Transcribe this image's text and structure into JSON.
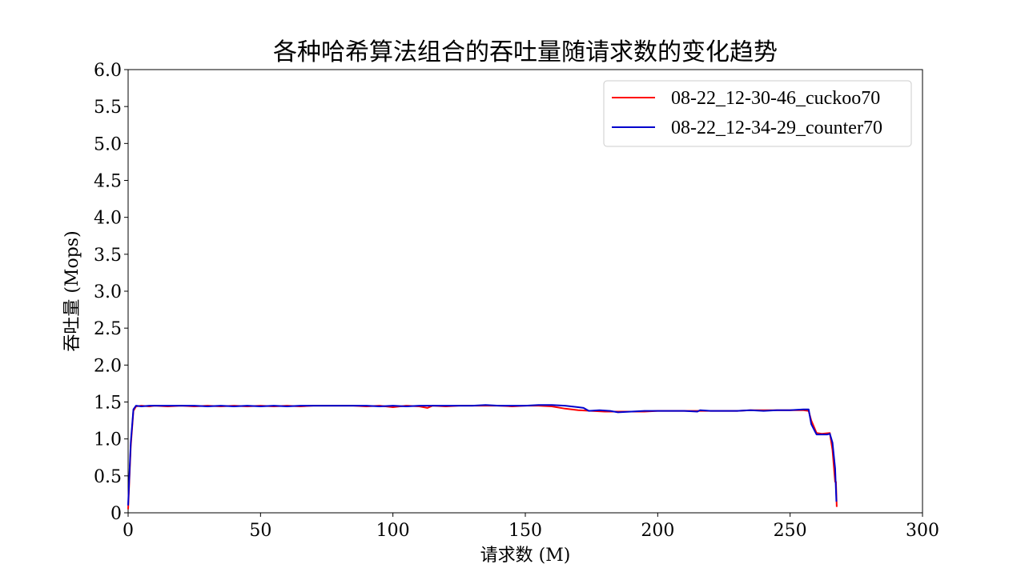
{
  "chart_data": {
    "type": "line",
    "title": "各种哈希算法组合的吞吐量随请求数的变化趋势",
    "xlabel": "请求数 (M)",
    "ylabel": "吞吐量 (Mops)",
    "xlim": [
      0,
      300
    ],
    "ylim": [
      0,
      6
    ],
    "xticks": [
      0,
      50,
      100,
      150,
      200,
      250,
      300
    ],
    "xtick_labels": [
      "0",
      "50",
      "100",
      "150",
      "200",
      "250",
      "300"
    ],
    "yticks": [
      0,
      0.5,
      1.0,
      1.5,
      2.0,
      2.5,
      3.0,
      3.5,
      4.0,
      4.5,
      5.0,
      5.5,
      6.0
    ],
    "ytick_labels": [
      "0",
      "0.5",
      "1.0",
      "1.5",
      "2.0",
      "2.5",
      "3.0",
      "3.5",
      "4.0",
      "4.5",
      "5.0",
      "5.5",
      "6.0"
    ],
    "grid": false,
    "legend_position": "top-right",
    "series": [
      {
        "name": "08-22_12-30-46_cuckoo70",
        "color": "#ff0000",
        "x": [
          0,
          1,
          2,
          3,
          5,
          8,
          10,
          15,
          20,
          25,
          30,
          35,
          40,
          45,
          50,
          55,
          60,
          65,
          70,
          75,
          80,
          85,
          90,
          95,
          100,
          105,
          110,
          113,
          115,
          120,
          125,
          130,
          135,
          140,
          145,
          150,
          155,
          160,
          165,
          170,
          175,
          180,
          185,
          190,
          195,
          200,
          205,
          210,
          215,
          220,
          225,
          230,
          235,
          240,
          245,
          250,
          255,
          257,
          258,
          260,
          262,
          265,
          266,
          267,
          267.3,
          267.6
        ],
        "y": [
          0.05,
          0.9,
          1.38,
          1.44,
          1.45,
          1.44,
          1.45,
          1.44,
          1.45,
          1.44,
          1.45,
          1.44,
          1.45,
          1.44,
          1.45,
          1.44,
          1.45,
          1.44,
          1.45,
          1.45,
          1.45,
          1.45,
          1.44,
          1.45,
          1.43,
          1.45,
          1.44,
          1.42,
          1.45,
          1.44,
          1.45,
          1.45,
          1.45,
          1.45,
          1.44,
          1.45,
          1.45,
          1.44,
          1.41,
          1.39,
          1.38,
          1.37,
          1.37,
          1.37,
          1.37,
          1.38,
          1.38,
          1.38,
          1.38,
          1.38,
          1.38,
          1.38,
          1.39,
          1.39,
          1.39,
          1.39,
          1.39,
          1.38,
          1.25,
          1.08,
          1.07,
          1.08,
          0.85,
          0.42,
          0.42,
          0.08
        ]
      },
      {
        "name": "08-22_12-34-29_counter70",
        "color": "#0000cc",
        "x": [
          0,
          1,
          2,
          3,
          5,
          8,
          10,
          15,
          20,
          25,
          30,
          35,
          40,
          45,
          50,
          55,
          60,
          65,
          70,
          75,
          80,
          85,
          90,
          95,
          100,
          105,
          110,
          115,
          120,
          125,
          130,
          135,
          140,
          145,
          150,
          155,
          160,
          165,
          170,
          172,
          174,
          178,
          182,
          185,
          190,
          195,
          200,
          205,
          210,
          215,
          216,
          220,
          225,
          230,
          235,
          240,
          245,
          250,
          255,
          257,
          258,
          260,
          262,
          264,
          265,
          266,
          267,
          267.5
        ],
        "y": [
          0.1,
          0.95,
          1.4,
          1.45,
          1.44,
          1.45,
          1.45,
          1.45,
          1.45,
          1.45,
          1.44,
          1.45,
          1.44,
          1.45,
          1.44,
          1.45,
          1.44,
          1.45,
          1.45,
          1.45,
          1.45,
          1.45,
          1.45,
          1.44,
          1.45,
          1.44,
          1.45,
          1.45,
          1.45,
          1.45,
          1.45,
          1.46,
          1.45,
          1.45,
          1.45,
          1.46,
          1.46,
          1.45,
          1.43,
          1.42,
          1.38,
          1.39,
          1.38,
          1.36,
          1.37,
          1.38,
          1.38,
          1.38,
          1.38,
          1.37,
          1.39,
          1.38,
          1.38,
          1.38,
          1.39,
          1.38,
          1.39,
          1.39,
          1.4,
          1.4,
          1.2,
          1.06,
          1.06,
          1.06,
          1.07,
          0.95,
          0.6,
          0.15
        ]
      }
    ]
  }
}
